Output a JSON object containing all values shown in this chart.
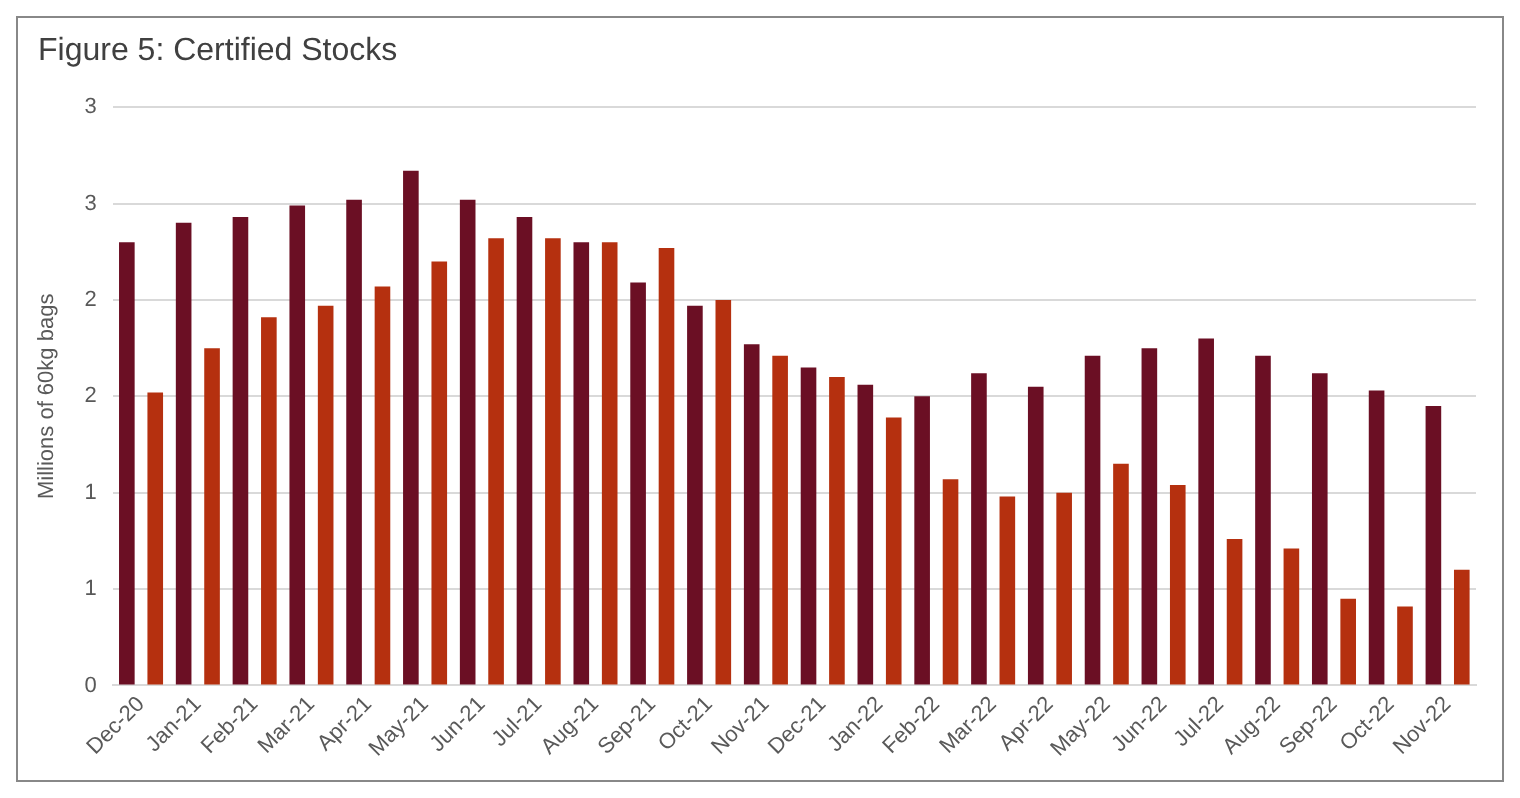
{
  "chart_data": {
    "type": "bar",
    "title": "Figure 5: Certified Stocks",
    "ylabel": "Millions of 60kg bags",
    "categories": [
      "Dec-20",
      "Jan-21",
      "Feb-21",
      "Mar-21",
      "Apr-21",
      "May-21",
      "Jun-21",
      "Jul-21",
      "Aug-21",
      "Sep-21",
      "Oct-21",
      "Nov-21",
      "Dec-21",
      "Jan-22",
      "Feb-22",
      "Mar-22",
      "Apr-22",
      "May-22",
      "Jun-22",
      "Jul-22",
      "Aug-22",
      "Sep-22",
      "Oct-22",
      "Nov-22"
    ],
    "series": [
      {
        "color": "#6b0f24",
        "values": [
          2.3,
          2.4,
          2.43,
          2.49,
          2.52,
          2.67,
          2.52,
          2.43,
          2.3,
          2.09,
          1.97,
          1.77,
          1.65,
          1.56,
          1.5,
          1.62,
          1.55,
          1.71,
          1.75,
          1.8,
          1.71,
          1.62,
          1.53,
          1.45
        ]
      },
      {
        "color": "#b5300f",
        "values": [
          1.52,
          1.75,
          1.91,
          1.97,
          2.07,
          2.2,
          2.32,
          2.32,
          2.3,
          2.27,
          2.0,
          1.71,
          1.6,
          1.39,
          1.07,
          0.98,
          1.0,
          1.15,
          1.04,
          0.76,
          0.71,
          0.45,
          0.41,
          0.6
        ]
      }
    ],
    "ylim": [
      0,
      3
    ],
    "yticks": [
      0,
      {
        "value": 0.5,
        "label": "1"
      },
      1,
      {
        "value": 1.5,
        "label": "2"
      },
      2,
      {
        "value": 2.5,
        "label": "3"
      },
      3
    ],
    "grid": "y",
    "legend": false
  }
}
